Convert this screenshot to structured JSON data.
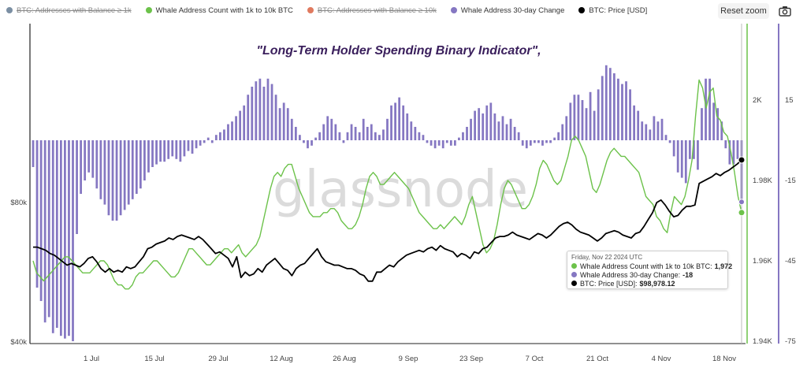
{
  "legend": [
    {
      "label": "BTC: Addresses with Balance ≥ 1k",
      "color": "#7b8fa3",
      "disabled": true
    },
    {
      "label": "Whale Address Count with 1k to 10k BTC",
      "color": "#6cc24a",
      "disabled": false
    },
    {
      "label": "BTC: Addresses with Balance ≥ 10k",
      "color": "#e07a5f",
      "disabled": true
    },
    {
      "label": "Whale Address 30-day Change",
      "color": "#8577c2",
      "disabled": false
    },
    {
      "label": "BTC: Price [USD]",
      "color": "#000000",
      "disabled": false
    }
  ],
  "toolbar": {
    "reset_zoom": "Reset zoom",
    "camera_icon": "camera-icon"
  },
  "watermark": "glassnode",
  "tooltip": {
    "date": "Friday, Nov 22 2024 UTC",
    "rows": [
      {
        "color": "#6cc24a",
        "label": "Whale Address Count with 1k to 10k BTC:",
        "value": "1,972"
      },
      {
        "color": "#8577c2",
        "label": "Whale Address 30-day Change:",
        "value": "-18"
      },
      {
        "color": "#000000",
        "label": "BTC: Price [USD]:",
        "value": "$98,978.12"
      }
    ]
  },
  "chart_data": {
    "type": "line",
    "title": "\"Long-Term Holder Spending Binary Indicator\",",
    "x_ticks": [
      "1 Jul",
      "15 Jul",
      "29 Jul",
      "12 Aug",
      "26 Aug",
      "9 Sep",
      "23 Sep",
      "7 Oct",
      "21 Oct",
      "4 Nov",
      "18 Nov"
    ],
    "x_range": [
      "2024-06-23",
      "2024-11-24"
    ],
    "left_axis": {
      "label": "",
      "ticks": [
        "$40k",
        "$80k"
      ],
      "scale": "log"
    },
    "right_axis_1": {
      "label": "",
      "ticks": [
        "1.94K",
        "1.96K",
        "1.98K",
        "2K"
      ],
      "range": [
        1940,
        2010
      ]
    },
    "right_axis_2": {
      "label": "",
      "ticks": [
        "-75",
        "-45",
        "-15",
        "15"
      ],
      "range": [
        -75,
        30
      ]
    },
    "series": [
      {
        "name": "Whale Address 30-day Change",
        "type": "bar",
        "color": "#8577c2",
        "axis": "right_axis_2",
        "values": [
          -10,
          -55,
          -60,
          -68,
          -66,
          -72,
          -70,
          -73,
          -74,
          -73,
          -75,
          -35,
          -20,
          -15,
          -12,
          -14,
          -18,
          -22,
          -24,
          -28,
          -30,
          -30,
          -28,
          -26,
          -24,
          -22,
          -20,
          -18,
          -15,
          -12,
          -10,
          -9,
          -8,
          -8,
          -7,
          -6,
          -7,
          -8,
          -6,
          -4,
          -5,
          -3,
          -2,
          -1,
          1,
          -1,
          2,
          3,
          4,
          6,
          7,
          9,
          11,
          13,
          17,
          20,
          22,
          23,
          20,
          23,
          21,
          17,
          12,
          14,
          12,
          8,
          5,
          2,
          -1,
          -3,
          -2,
          1,
          3,
          6,
          9,
          8,
          6,
          3,
          -1,
          3,
          6,
          5,
          3,
          8,
          5,
          6,
          3,
          2,
          4,
          8,
          13,
          14,
          16,
          13,
          10,
          7,
          5,
          3,
          2,
          -1,
          -2,
          -3,
          -2,
          -3,
          -1,
          -2,
          -2,
          1,
          3,
          5,
          8,
          11,
          12,
          10,
          13,
          14,
          10,
          7,
          9,
          6,
          8,
          5,
          3,
          -2,
          -3,
          -2,
          -1,
          -1,
          -2,
          -1,
          -1,
          1,
          3,
          6,
          9,
          14,
          17,
          17,
          15,
          12,
          18,
          11,
          19,
          24,
          28,
          27,
          25,
          23,
          21,
          22,
          19,
          13,
          11,
          7,
          6,
          4,
          9,
          7,
          8,
          2,
          -1,
          -6,
          -12,
          -14,
          -16,
          -7,
          -7,
          -11,
          12,
          23,
          23,
          14,
          12,
          7,
          -3,
          -9,
          -9,
          -7,
          -23
        ]
      },
      {
        "name": "Whale Address Count with 1k to 10k BTC",
        "type": "line",
        "color": "#6cc24a",
        "axis": "right_axis_1",
        "values": [
          1960,
          1957,
          1956,
          1955,
          1956,
          1957,
          1958,
          1959,
          1960,
          1961,
          1961,
          1960,
          1959,
          1958,
          1957,
          1957,
          1957,
          1958,
          1959,
          1960,
          1960,
          1959,
          1957,
          1955,
          1954,
          1954,
          1953,
          1953,
          1954,
          1956,
          1957,
          1957,
          1958,
          1959,
          1960,
          1960,
          1959,
          1958,
          1957,
          1956,
          1956,
          1957,
          1959,
          1961,
          1963,
          1963,
          1962,
          1961,
          1960,
          1959,
          1959,
          1960,
          1961,
          1962,
          1963,
          1963,
          1962,
          1963,
          1964,
          1962,
          1961,
          1962,
          1963,
          1964,
          1966,
          1970,
          1974,
          1978,
          1981,
          1982,
          1981,
          1983,
          1984,
          1984,
          1981,
          1978,
          1976,
          1974,
          1972,
          1971,
          1971,
          1971,
          1972,
          1972,
          1973,
          1973,
          1972,
          1970,
          1969,
          1968,
          1968,
          1969,
          1971,
          1974,
          1978,
          1981,
          1982,
          1981,
          1979,
          1979,
          1980,
          1981,
          1982,
          1981,
          1980,
          1979,
          1978,
          1976,
          1974,
          1972,
          1971,
          1970,
          1969,
          1968,
          1968,
          1969,
          1968,
          1969,
          1970,
          1971,
          1970,
          1969,
          1971,
          1974,
          1976,
          1972,
          1968,
          1964,
          1962,
          1963,
          1965,
          1969,
          1974,
          1978,
          1980,
          1979,
          1977,
          1975,
          1973,
          1973,
          1974,
          1976,
          1979,
          1983,
          1985,
          1984,
          1982,
          1980,
          1979,
          1980,
          1983,
          1986,
          1990,
          1991,
          1990,
          1988,
          1986,
          1982,
          1978,
          1977,
          1979,
          1982,
          1985,
          1987,
          1988,
          1987,
          1986,
          1986,
          1985,
          1984,
          1983,
          1982,
          1979,
          1976,
          1975,
          1974,
          1971,
          1970,
          1968,
          1967,
          1972,
          1976,
          1975,
          1974,
          1976,
          1980,
          1985,
          1996,
          2005,
          2003,
          1998,
          2002,
          2003,
          1996,
          1995,
          1992,
          1991,
          1987,
          1982,
          1976,
          1972
        ]
      },
      {
        "name": "BTC: Price [USD]",
        "type": "line",
        "color": "#000000",
        "axis": "left_axis",
        "values": [
          64000,
          64000,
          63500,
          63000,
          62000,
          61500,
          60500,
          59500,
          58500,
          59000,
          58500,
          58000,
          59000,
          60500,
          61000,
          59500,
          57500,
          56500,
          57500,
          56500,
          57000,
          56500,
          58000,
          57500,
          58000,
          59500,
          61000,
          63500,
          64000,
          65000,
          65500,
          66000,
          67000,
          66500,
          67500,
          68000,
          67500,
          67000,
          66500,
          67500,
          66500,
          65000,
          63500,
          62000,
          62500,
          61500,
          60500,
          58000,
          61000,
          55000,
          56500,
          55500,
          56000,
          57500,
          56500,
          58500,
          59500,
          60500,
          59000,
          57500,
          57000,
          55500,
          57500,
          58500,
          59000,
          60500,
          62000,
          63500,
          61000,
          59500,
          59000,
          58500,
          58500,
          58000,
          57500,
          57500,
          57000,
          56000,
          55500,
          54000,
          54000,
          56500,
          56500,
          57500,
          58500,
          58000,
          59500,
          60500,
          61500,
          62000,
          62500,
          63000,
          62500,
          63500,
          64000,
          63000,
          64500,
          63500,
          63000,
          62500,
          61000,
          62000,
          61500,
          60500,
          62500,
          62000,
          63500,
          64000,
          65500,
          67000,
          67500,
          67500,
          68000,
          69000,
          68000,
          67500,
          67000,
          66500,
          67500,
          68500,
          68000,
          67000,
          68000,
          69500,
          71000,
          72000,
          72500,
          71500,
          70000,
          69000,
          68500,
          68000,
          67000,
          66000,
          67000,
          68500,
          69000,
          69500,
          69000,
          68000,
          67500,
          67000,
          68500,
          69000,
          71000,
          73500,
          76000,
          80000,
          81000,
          79000,
          76500,
          74500,
          75000,
          77000,
          78500,
          78500,
          79000,
          88000,
          89000,
          90000,
          91000,
          92500,
          91500,
          93000,
          94000,
          95500,
          97000,
          98978
        ]
      }
    ],
    "hover_date": "Nov 22 2024"
  }
}
